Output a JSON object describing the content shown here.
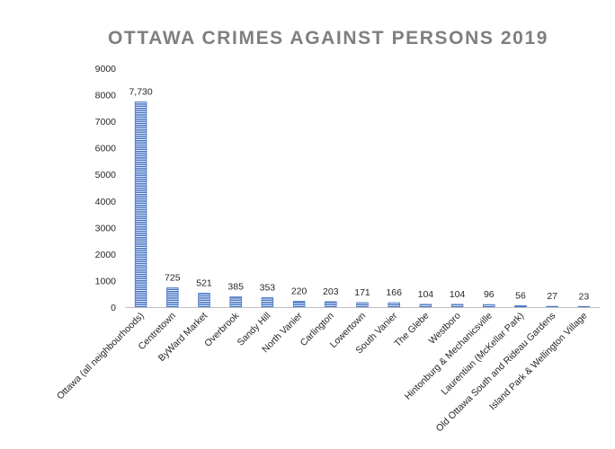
{
  "colors": {
    "bar_fill": "#4472c4",
    "bar_stripe": "#ffffff",
    "axis_line": "#bfbfbf",
    "title": "#7f7f7f",
    "text": "#262626"
  },
  "chart_data": {
    "type": "bar",
    "title": "OTTAWA CRIMES AGAINST PERSONS 2019",
    "xlabel": "",
    "ylabel": "",
    "ylim": [
      0,
      9000
    ],
    "y_ticks": [
      0,
      1000,
      2000,
      3000,
      4000,
      5000,
      6000,
      7000,
      8000,
      9000
    ],
    "grid": false,
    "legend": "none",
    "bar_pattern": "horizontal-stripes",
    "categories": [
      "Ottawa (all neighbourhoods)",
      "Centretown",
      "ByWard Market",
      "Overbrook",
      "Sandy Hill",
      "North Vanier",
      "Carlington",
      "Lowertown",
      "South Vanier",
      "The Glebe",
      "Westboro",
      "Hintonburg & Mechanicsville",
      "Laurentian (McKellar Park)",
      "Old Ottawa South and Rideau Gardens",
      "Island Park & Wellington Village"
    ],
    "values": [
      7730,
      725,
      521,
      385,
      353,
      220,
      203,
      171,
      166,
      104,
      104,
      96,
      56,
      27,
      23
    ],
    "data_labels": [
      "7,730",
      "725",
      "521",
      "385",
      "353",
      "220",
      "203",
      "171",
      "166",
      "104",
      "104",
      "96",
      "56",
      "27",
      "23"
    ]
  }
}
